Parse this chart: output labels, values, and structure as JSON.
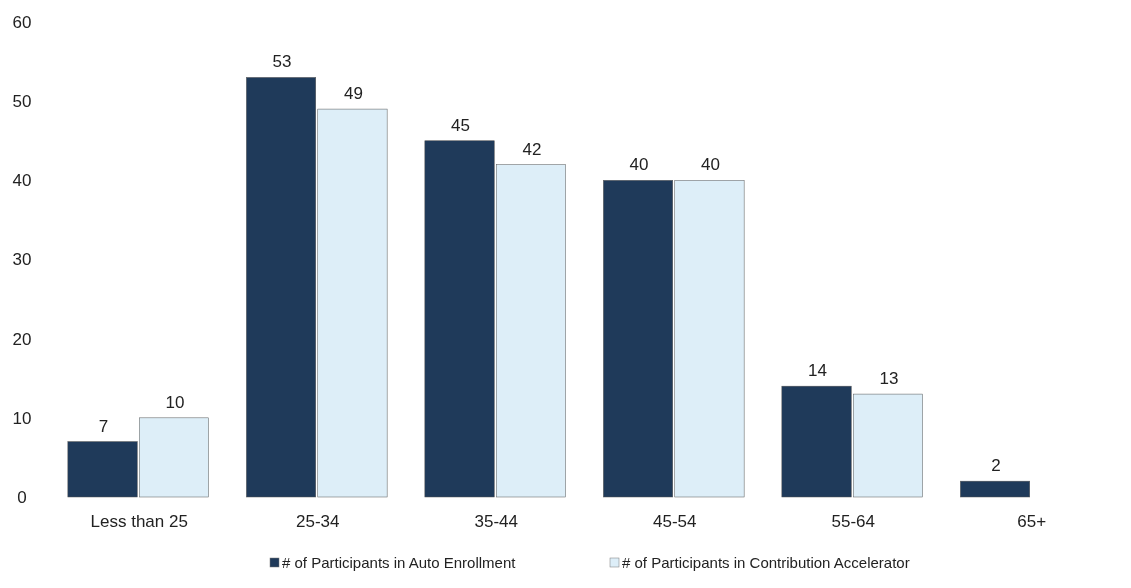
{
  "chart_data": {
    "type": "bar",
    "categories": [
      "Less than 25",
      "25-34",
      "35-44",
      "45-54",
      "55-64",
      "65+"
    ],
    "series": [
      {
        "name": "# of Participants in Auto Enrollment",
        "color": "#1f3a5a",
        "values": [
          7,
          53,
          45,
          40,
          14,
          2
        ]
      },
      {
        "name": "# of Participants in Contribution Accelerator",
        "color": "#ddeef8",
        "values": [
          10,
          49,
          42,
          40,
          13,
          null
        ]
      }
    ],
    "ylim": [
      0,
      60
    ],
    "yticks": [
      0,
      10,
      20,
      30,
      40,
      50,
      60
    ],
    "grid": false,
    "legend": "bottom",
    "data_labels": true
  }
}
